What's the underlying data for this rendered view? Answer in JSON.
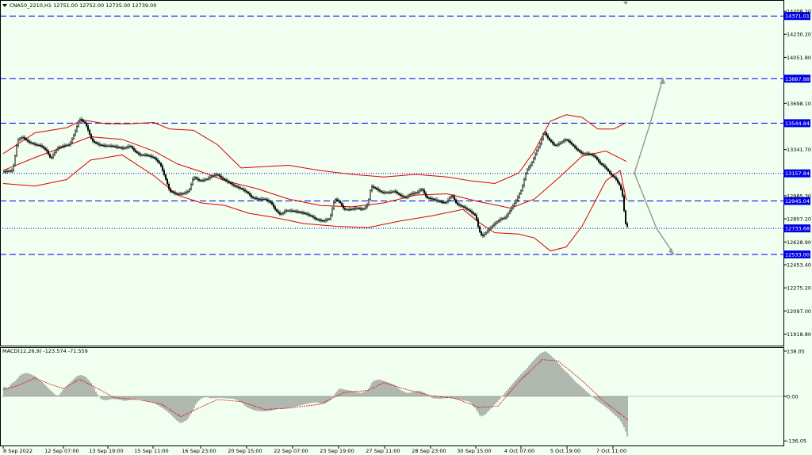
{
  "header": {
    "symbol_line": "CNA50_2210,H1  12751.00 12752.00 12735.00 12739.00",
    "macd_line": "MACD(12,26,9) -123.574 -71.559"
  },
  "colors": {
    "background": "#f0fff0",
    "candle": "#000000",
    "bollinger": "#e00000",
    "level_line": "#0000e0",
    "level_label_bg": "#0000e0",
    "level_label_text": "#ffffff",
    "macd_hist": "#606060",
    "macd_signal": "#e00000",
    "projection_arrow": "#9a9a9a"
  },
  "chart_data": [
    {
      "type": "candlestick",
      "symbol": "CNA50_2210",
      "timeframe": "H1",
      "title": "",
      "ylim": [
        11830,
        14470
      ],
      "y_ticks": [
        "14408.20",
        "14230.20",
        "14051.80",
        "13698.10",
        "13341.70",
        "12985.30",
        "12807.20",
        "12628.90",
        "12453.40",
        "12275.20",
        "12097.00",
        "11918.80"
      ],
      "y_tick_values": [
        14408.2,
        14230.2,
        14051.8,
        13698.1,
        13341.7,
        12985.3,
        12807.2,
        12628.9,
        12453.4,
        12275.2,
        12097.0,
        11918.8
      ],
      "x_ticks": [
        "8 Sep 2022",
        "12 Sep 07:00",
        "13 Sep 19:00",
        "15 Sep 11:00",
        "16 Sep 23:00",
        "20 Sep 15:00",
        "22 Sep 07:00",
        "23 Sep 19:00",
        "27 Sep 11:00",
        "28 Sep 23:00",
        "30 Sep 15:00",
        "4 Oct 07:00",
        "5 Oct 19:00",
        "7 Oct 11:00"
      ],
      "close_path": [
        [
          0,
          13170
        ],
        [
          12,
          13180
        ],
        [
          18,
          13410
        ],
        [
          24,
          13440
        ],
        [
          32,
          13400
        ],
        [
          40,
          13380
        ],
        [
          48,
          13370
        ],
        [
          55,
          13330
        ],
        [
          60,
          13270
        ],
        [
          68,
          13350
        ],
        [
          76,
          13370
        ],
        [
          84,
          13380
        ],
        [
          92,
          13500
        ],
        [
          96,
          13580
        ],
        [
          104,
          13540
        ],
        [
          112,
          13410
        ],
        [
          120,
          13380
        ],
        [
          128,
          13370
        ],
        [
          136,
          13370
        ],
        [
          144,
          13360
        ],
        [
          152,
          13350
        ],
        [
          160,
          13370
        ],
        [
          166,
          13330
        ],
        [
          172,
          13300
        ],
        [
          180,
          13300
        ],
        [
          190,
          13280
        ],
        [
          198,
          13230
        ],
        [
          204,
          13130
        ],
        [
          210,
          13020
        ],
        [
          218,
          13000
        ],
        [
          226,
          13000
        ],
        [
          234,
          13020
        ],
        [
          240,
          13130
        ],
        [
          248,
          13100
        ],
        [
          256,
          13110
        ],
        [
          264,
          13140
        ],
        [
          270,
          13150
        ],
        [
          276,
          13120
        ],
        [
          284,
          13090
        ],
        [
          292,
          13060
        ],
        [
          300,
          13040
        ],
        [
          308,
          13010
        ],
        [
          314,
          12970
        ],
        [
          322,
          12960
        ],
        [
          330,
          12960
        ],
        [
          338,
          12930
        ],
        [
          344,
          12870
        ],
        [
          350,
          12840
        ],
        [
          356,
          12870
        ],
        [
          364,
          12870
        ],
        [
          372,
          12860
        ],
        [
          380,
          12850
        ],
        [
          388,
          12830
        ],
        [
          396,
          12800
        ],
        [
          404,
          12790
        ],
        [
          412,
          12810
        ],
        [
          418,
          12960
        ],
        [
          424,
          12940
        ],
        [
          430,
          12880
        ],
        [
          438,
          12880
        ],
        [
          446,
          12890
        ],
        [
          454,
          12880
        ],
        [
          460,
          12920
        ],
        [
          464,
          13060
        ],
        [
          470,
          13040
        ],
        [
          478,
          13010
        ],
        [
          486,
          13010
        ],
        [
          494,
          13020
        ],
        [
          500,
          12990
        ],
        [
          508,
          12970
        ],
        [
          514,
          13000
        ],
        [
          522,
          13010
        ],
        [
          528,
          13040
        ],
        [
          534,
          12970
        ],
        [
          542,
          12960
        ],
        [
          550,
          12940
        ],
        [
          558,
          12930
        ],
        [
          566,
          12990
        ],
        [
          572,
          12920
        ],
        [
          580,
          12900
        ],
        [
          588,
          12870
        ],
        [
          596,
          12830
        ],
        [
          600,
          12720
        ],
        [
          604,
          12670
        ],
        [
          610,
          12710
        ],
        [
          618,
          12760
        ],
        [
          626,
          12800
        ],
        [
          634,
          12820
        ],
        [
          640,
          12880
        ],
        [
          648,
          12960
        ],
        [
          654,
          13040
        ],
        [
          660,
          13180
        ],
        [
          666,
          13230
        ],
        [
          672,
          13320
        ],
        [
          678,
          13400
        ],
        [
          682,
          13480
        ],
        [
          688,
          13420
        ],
        [
          696,
          13370
        ],
        [
          702,
          13390
        ],
        [
          710,
          13420
        ],
        [
          716,
          13390
        ],
        [
          722,
          13350
        ],
        [
          730,
          13310
        ],
        [
          738,
          13310
        ],
        [
          746,
          13290
        ],
        [
          752,
          13240
        ],
        [
          760,
          13200
        ],
        [
          766,
          13150
        ],
        [
          772,
          13120
        ],
        [
          778,
          13060
        ],
        [
          782,
          12960
        ],
        [
          784,
          12780
        ],
        [
          788,
          12739
        ]
      ],
      "bollinger_upper": [
        [
          0,
          13310
        ],
        [
          40,
          13470
        ],
        [
          80,
          13510
        ],
        [
          100,
          13570
        ],
        [
          130,
          13540
        ],
        [
          160,
          13540
        ],
        [
          190,
          13550
        ],
        [
          210,
          13500
        ],
        [
          240,
          13490
        ],
        [
          270,
          13380
        ],
        [
          300,
          13200
        ],
        [
          330,
          13210
        ],
        [
          360,
          13220
        ],
        [
          400,
          13180
        ],
        [
          440,
          13150
        ],
        [
          480,
          13130
        ],
        [
          520,
          13150
        ],
        [
          560,
          13130
        ],
        [
          590,
          13100
        ],
        [
          620,
          13080
        ],
        [
          650,
          13160
        ],
        [
          670,
          13330
        ],
        [
          690,
          13560
        ],
        [
          710,
          13610
        ],
        [
          730,
          13590
        ],
        [
          750,
          13500
        ],
        [
          770,
          13500
        ],
        [
          786,
          13550
        ]
      ],
      "bollinger_middle": [
        [
          0,
          13180
        ],
        [
          40,
          13280
        ],
        [
          80,
          13370
        ],
        [
          110,
          13440
        ],
        [
          150,
          13420
        ],
        [
          190,
          13330
        ],
        [
          220,
          13230
        ],
        [
          250,
          13170
        ],
        [
          280,
          13100
        ],
        [
          320,
          13040
        ],
        [
          360,
          12960
        ],
        [
          400,
          12910
        ],
        [
          440,
          12900
        ],
        [
          480,
          12930
        ],
        [
          520,
          12990
        ],
        [
          560,
          13000
        ],
        [
          600,
          12940
        ],
        [
          640,
          12890
        ],
        [
          670,
          12960
        ],
        [
          700,
          13120
        ],
        [
          730,
          13290
        ],
        [
          760,
          13330
        ],
        [
          786,
          13250
        ]
      ],
      "bollinger_lower": [
        [
          0,
          13080
        ],
        [
          40,
          13060
        ],
        [
          80,
          13110
        ],
        [
          110,
          13260
        ],
        [
          150,
          13300
        ],
        [
          190,
          13140
        ],
        [
          220,
          12990
        ],
        [
          250,
          12930
        ],
        [
          280,
          12910
        ],
        [
          310,
          12850
        ],
        [
          340,
          12820
        ],
        [
          380,
          12770
        ],
        [
          420,
          12750
        ],
        [
          460,
          12740
        ],
        [
          500,
          12790
        ],
        [
          540,
          12830
        ],
        [
          580,
          12880
        ],
        [
          600,
          12780
        ],
        [
          620,
          12700
        ],
        [
          650,
          12690
        ],
        [
          670,
          12660
        ],
        [
          690,
          12560
        ],
        [
          710,
          12590
        ],
        [
          730,
          12750
        ],
        [
          760,
          13100
        ],
        [
          778,
          13180
        ],
        [
          786,
          12950
        ]
      ],
      "levels": [
        {
          "value": 14371.01,
          "label": "14371.01",
          "style": "dashed"
        },
        {
          "value": 13887.88,
          "label": "13887.88",
          "style": "dashed"
        },
        {
          "value": 13544.84,
          "label": "13544.84",
          "style": "dashed"
        },
        {
          "value": 13157.84,
          "label": "13157.84",
          "style": "dotted"
        },
        {
          "value": 12945.04,
          "label": "12945.04",
          "style": "dashed"
        },
        {
          "value": 12733.68,
          "label": "12733.68",
          "style": "dotted"
        },
        {
          "value": 12533.0,
          "label": "12533.00",
          "style": "dashed"
        }
      ],
      "projection": {
        "origin": [
          796,
          13160
        ],
        "up_target": [
          832,
          13890
        ],
        "down_target": [
          846,
          12533
        ],
        "up_mid": [
          816,
          13544
        ],
        "down_mid": [
          824,
          12733
        ]
      }
    },
    {
      "type": "histogram",
      "indicator": "MACD(12,26,9)",
      "title": "",
      "ylim": [
        -150,
        150
      ],
      "y_ticks": [
        "138.05",
        "0.00",
        "-136.05"
      ],
      "y_tick_values": [
        138.05,
        0,
        -136.05
      ],
      "histogram": [
        [
          0,
          30
        ],
        [
          6,
          26
        ],
        [
          10,
          38
        ],
        [
          16,
          48
        ],
        [
          22,
          66
        ],
        [
          30,
          72
        ],
        [
          40,
          62
        ],
        [
          50,
          42
        ],
        [
          60,
          18
        ],
        [
          66,
          4
        ],
        [
          70,
          2
        ],
        [
          76,
          22
        ],
        [
          84,
          40
        ],
        [
          92,
          60
        ],
        [
          98,
          66
        ],
        [
          104,
          60
        ],
        [
          112,
          38
        ],
        [
          118,
          10
        ],
        [
          124,
          -10
        ],
        [
          130,
          -12
        ],
        [
          138,
          -8
        ],
        [
          146,
          -10
        ],
        [
          154,
          -14
        ],
        [
          162,
          -10
        ],
        [
          172,
          -8
        ],
        [
          180,
          -14
        ],
        [
          190,
          -20
        ],
        [
          200,
          -34
        ],
        [
          210,
          -52
        ],
        [
          218,
          -72
        ],
        [
          224,
          -82
        ],
        [
          232,
          -72
        ],
        [
          238,
          -50
        ],
        [
          244,
          -20
        ],
        [
          250,
          -6
        ],
        [
          256,
          -2
        ],
        [
          262,
          -6
        ],
        [
          272,
          -4
        ],
        [
          282,
          -6
        ],
        [
          292,
          -8
        ],
        [
          300,
          -18
        ],
        [
          308,
          -34
        ],
        [
          318,
          -44
        ],
        [
          328,
          -46
        ],
        [
          338,
          -44
        ],
        [
          346,
          -38
        ],
        [
          354,
          -38
        ],
        [
          364,
          -34
        ],
        [
          374,
          -28
        ],
        [
          384,
          -22
        ],
        [
          394,
          -18
        ],
        [
          404,
          -24
        ],
        [
          412,
          -14
        ],
        [
          418,
          6
        ],
        [
          424,
          24
        ],
        [
          432,
          20
        ],
        [
          442,
          16
        ],
        [
          452,
          10
        ],
        [
          460,
          20
        ],
        [
          466,
          46
        ],
        [
          474,
          52
        ],
        [
          484,
          44
        ],
        [
          494,
          34
        ],
        [
          502,
          18
        ],
        [
          510,
          10
        ],
        [
          518,
          14
        ],
        [
          524,
          18
        ],
        [
          532,
          10
        ],
        [
          542,
          -6
        ],
        [
          552,
          -8
        ],
        [
          562,
          -4
        ],
        [
          570,
          -8
        ],
        [
          580,
          -12
        ],
        [
          588,
          -16
        ],
        [
          596,
          -38
        ],
        [
          602,
          -62
        ],
        [
          608,
          -56
        ],
        [
          614,
          -40
        ],
        [
          622,
          -20
        ],
        [
          630,
          2
        ],
        [
          638,
          26
        ],
        [
          646,
          48
        ],
        [
          654,
          70
        ],
        [
          660,
          84
        ],
        [
          666,
          102
        ],
        [
          672,
          118
        ],
        [
          678,
          132
        ],
        [
          684,
          138
        ],
        [
          690,
          126
        ],
        [
          698,
          108
        ],
        [
          706,
          84
        ],
        [
          714,
          66
        ],
        [
          722,
          44
        ],
        [
          730,
          28
        ],
        [
          738,
          10
        ],
        [
          746,
          -8
        ],
        [
          754,
          -22
        ],
        [
          762,
          -36
        ],
        [
          770,
          -54
        ],
        [
          778,
          -72
        ],
        [
          784,
          -100
        ],
        [
          788,
          -130
        ]
      ],
      "signal": [
        [
          0,
          20
        ],
        [
          20,
          34
        ],
        [
          40,
          56
        ],
        [
          60,
          36
        ],
        [
          76,
          24
        ],
        [
          96,
          52
        ],
        [
          116,
          28
        ],
        [
          140,
          -4
        ],
        [
          170,
          -10
        ],
        [
          200,
          -24
        ],
        [
          224,
          -62
        ],
        [
          248,
          -34
        ],
        [
          270,
          -10
        ],
        [
          300,
          -16
        ],
        [
          330,
          -40
        ],
        [
          360,
          -36
        ],
        [
          400,
          -24
        ],
        [
          430,
          12
        ],
        [
          460,
          18
        ],
        [
          480,
          42
        ],
        [
          510,
          20
        ],
        [
          540,
          2
        ],
        [
          570,
          -6
        ],
        [
          600,
          -34
        ],
        [
          624,
          -30
        ],
        [
          650,
          44
        ],
        [
          680,
          112
        ],
        [
          700,
          108
        ],
        [
          730,
          48
        ],
        [
          760,
          -20
        ],
        [
          788,
          -72
        ]
      ]
    }
  ]
}
